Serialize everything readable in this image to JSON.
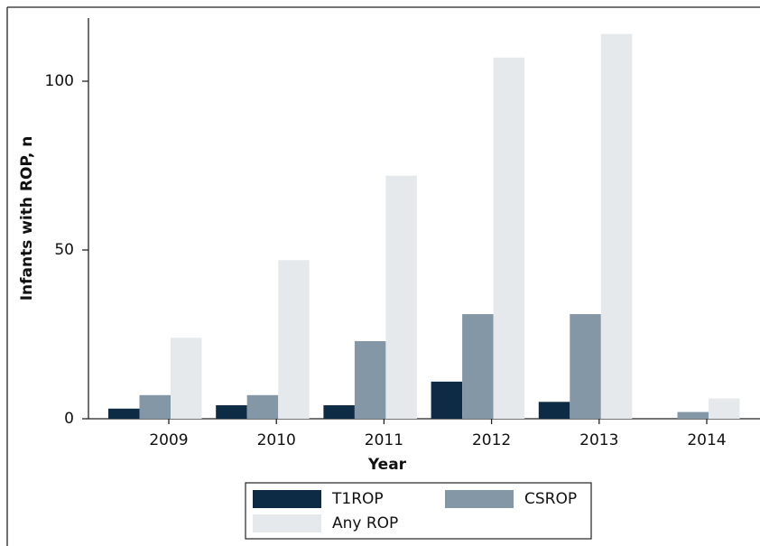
{
  "chart_data": {
    "type": "bar",
    "x_label": "Year",
    "y_label": "Infants with ROP, n",
    "categories": [
      "2009",
      "2010",
      "2011",
      "2012",
      "2013",
      "2014"
    ],
    "series": [
      {
        "name": "T1ROP",
        "color": "#0d2b45",
        "values": [
          3,
          4,
          4,
          11,
          5,
          0
        ]
      },
      {
        "name": "CSROP",
        "color": "#8497a6",
        "values": [
          7,
          7,
          23,
          31,
          31,
          2
        ]
      },
      {
        "name": "Any ROP",
        "color": "#e6e9ec",
        "values": [
          24,
          47,
          72,
          107,
          114,
          6
        ]
      }
    ],
    "ylim": [
      0,
      100
    ],
    "yticks": [
      0,
      50,
      100
    ],
    "grid": false
  }
}
